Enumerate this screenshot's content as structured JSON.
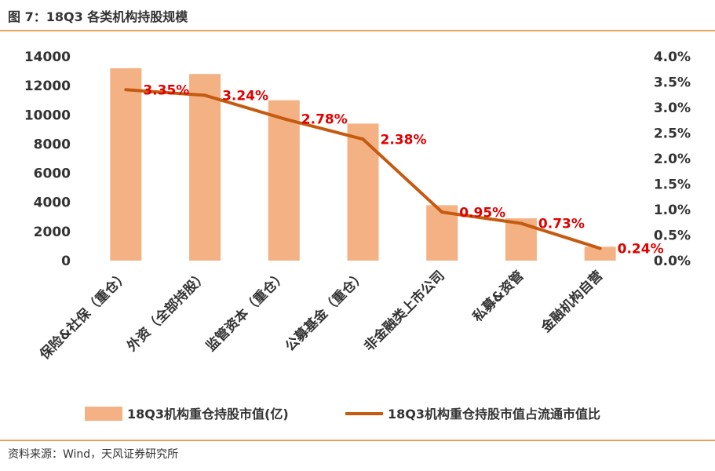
{
  "title": "图 7：18Q3 各类机构持股规模",
  "source": "资料来源：Wind，天风证券研究所",
  "colors": {
    "bar": "#f4b183",
    "line": "#c55a11",
    "label": "#e00000",
    "rule": "#e6a25a"
  },
  "chart_data": {
    "type": "bar+line",
    "categories": [
      "保险&社保（重仓）",
      "外资（全部持股）",
      "监管资本（重仓）",
      "公募基金（重仓）",
      "非金融类上市公司",
      "私募&资管",
      "金融机构自营"
    ],
    "series": [
      {
        "name": "18Q3机构重仓持股市值(亿)",
        "type": "bar",
        "axis": "left",
        "values": [
          13200,
          12800,
          11000,
          9400,
          3800,
          2900,
          950
        ]
      },
      {
        "name": "18Q3机构重仓持股市值占流通市值比",
        "type": "line",
        "axis": "right",
        "values": [
          3.35,
          3.24,
          2.78,
          2.38,
          0.95,
          0.73,
          0.24
        ],
        "data_labels": [
          "3.35%",
          "3.24%",
          "2.78%",
          "2.38%",
          "0.95%",
          "0.73%",
          "0.24%"
        ]
      }
    ],
    "y_left": {
      "min": 0,
      "max": 14000,
      "ticks": [
        "0",
        "2000",
        "4000",
        "6000",
        "8000",
        "10000",
        "12000",
        "14000"
      ]
    },
    "y_right": {
      "min": 0,
      "max": 4.0,
      "ticks": [
        "0.0%",
        "0.5%",
        "1.0%",
        "1.5%",
        "2.0%",
        "2.5%",
        "3.0%",
        "3.5%",
        "4.0%"
      ]
    },
    "legend": [
      "18Q3机构重仓持股市值(亿)",
      "18Q3机构重仓持股市值占流通市值比"
    ],
    "legend_position": "bottom",
    "grid": false
  }
}
